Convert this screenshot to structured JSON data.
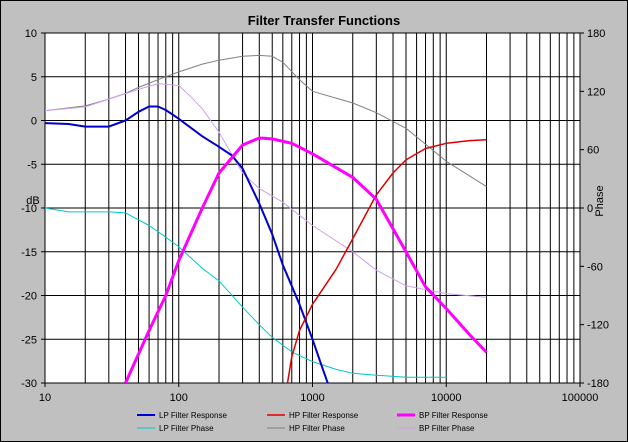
{
  "chart_data": {
    "type": "line",
    "title": "Filter Transfer Functions",
    "ylabel": "dB",
    "y2label": "Phase",
    "xscale": "log",
    "xlim": [
      10,
      100000
    ],
    "ylim": [
      -30,
      10
    ],
    "y2lim": [
      -180,
      180
    ],
    "grid": true,
    "legend_position": "bottom",
    "x_ticks": [
      "10",
      "100",
      "1000",
      "10000",
      "100000"
    ],
    "y_ticks": [
      "10",
      "5",
      "0",
      "-5",
      "-10",
      "-15",
      "-20",
      "-25",
      "-30"
    ],
    "y2_ticks": [
      "180",
      "120",
      "60",
      "0",
      "-60",
      "-120",
      "-180"
    ],
    "series": [
      {
        "name": "LP Filter Response",
        "axis": "left",
        "color": "#0000cc",
        "width": 2,
        "x": [
          10,
          15,
          20,
          30,
          40,
          50,
          60,
          70,
          80,
          100,
          150,
          200,
          250,
          300,
          400,
          500,
          600,
          800,
          1000,
          1200,
          1300
        ],
        "y": [
          -0.3,
          -0.4,
          -0.7,
          -0.7,
          0.0,
          1.0,
          1.6,
          1.6,
          1.2,
          0.2,
          -1.8,
          -3.0,
          -4.0,
          -5.5,
          -9.5,
          -13.0,
          -16.5,
          -21.0,
          -25.0,
          -28.5,
          -30.0
        ]
      },
      {
        "name": "HP Filter Response",
        "axis": "left",
        "color": "#dd0000",
        "width": 1.5,
        "x": [
          650,
          700,
          800,
          1000,
          1500,
          2000,
          3000,
          4000,
          5000,
          7000,
          10000,
          15000,
          20000
        ],
        "y": [
          -30.0,
          -27.0,
          -24.0,
          -21.0,
          -17.0,
          -13.5,
          -8.5,
          -6.0,
          -4.5,
          -3.2,
          -2.6,
          -2.3,
          -2.2
        ]
      },
      {
        "name": "BP Filter Response",
        "axis": "left",
        "color": "#ff00ff",
        "width": 3,
        "x": [
          40,
          60,
          80,
          100,
          150,
          200,
          300,
          400,
          500,
          700,
          1000,
          2000,
          3000,
          5000,
          7000,
          10000,
          15000,
          20000
        ],
        "y": [
          -30.0,
          -24.0,
          -20.0,
          -16.0,
          -10.0,
          -6.0,
          -2.8,
          -2.0,
          -2.1,
          -2.6,
          -3.8,
          -6.5,
          -9.0,
          -15.0,
          -19.0,
          -21.5,
          -24.5,
          -26.5
        ]
      },
      {
        "name": "LP Filter Phase",
        "axis": "right",
        "color": "#00c8c8",
        "width": 1,
        "x": [
          10,
          15,
          20,
          30,
          40,
          60,
          80,
          100,
          150,
          200,
          300,
          400,
          500,
          700,
          1000,
          1500,
          2000,
          3000,
          5000,
          10000
        ],
        "y": [
          0,
          -4,
          -4,
          -4,
          -5,
          -18,
          -30,
          -40,
          -62,
          -75,
          -102,
          -120,
          -133,
          -148,
          -158,
          -166,
          -170,
          -172,
          -174,
          -174
        ]
      },
      {
        "name": "HP Filter Phase",
        "axis": "right",
        "color": "#808080",
        "width": 1,
        "x": [
          10,
          20,
          30,
          40,
          50,
          70,
          100,
          150,
          200,
          300,
          400,
          500,
          600,
          800,
          1000,
          2000,
          3000,
          5000,
          10000,
          20000
        ],
        "y": [
          100,
          105,
          112,
          118,
          124,
          132,
          140,
          148,
          152,
          156,
          157,
          156,
          150,
          132,
          120,
          108,
          98,
          82,
          48,
          22
        ]
      },
      {
        "name": "BP Filter Phase",
        "axis": "right",
        "color": "#d0a0f0",
        "width": 1,
        "x": [
          10,
          20,
          30,
          50,
          70,
          100,
          120,
          150,
          200,
          300,
          400,
          600,
          1000,
          2000,
          3000,
          5000,
          10000,
          20000
        ],
        "y": [
          100,
          104,
          112,
          122,
          128,
          126,
          116,
          102,
          78,
          36,
          20,
          6,
          -18,
          -45,
          -64,
          -80,
          -88,
          -92
        ]
      }
    ]
  }
}
